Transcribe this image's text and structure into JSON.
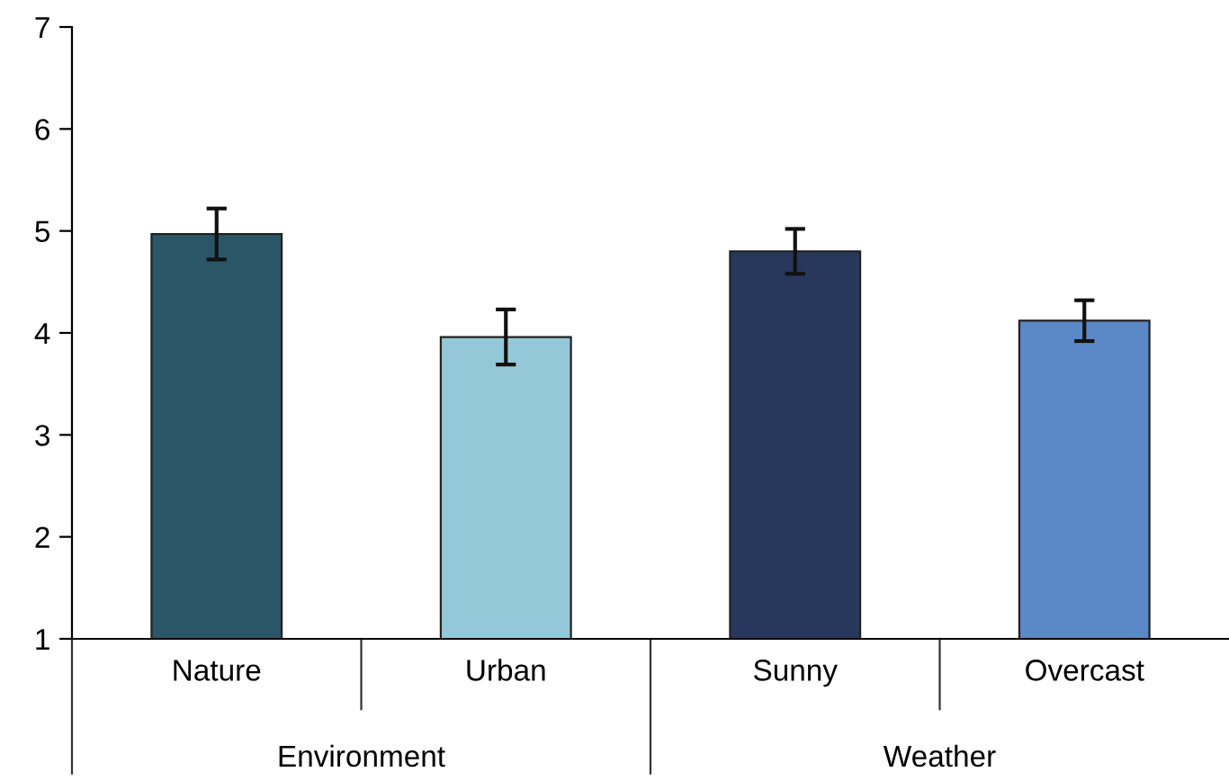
{
  "chart_data": {
    "type": "bar",
    "categories": [
      "Nature",
      "Urban",
      "Sunny",
      "Overcast"
    ],
    "values": [
      4.97,
      3.96,
      4.8,
      4.12
    ],
    "errors": [
      0.25,
      0.27,
      0.22,
      0.2
    ],
    "colors": [
      "#2b5667",
      "#94c8d8",
      "#27385c",
      "#5b88c6"
    ],
    "ylim": [
      1,
      7
    ],
    "yticks": [
      1,
      2,
      3,
      4,
      5,
      6,
      7
    ],
    "grid": false,
    "annotations": [
      "Environment",
      "Weather"
    ]
  }
}
